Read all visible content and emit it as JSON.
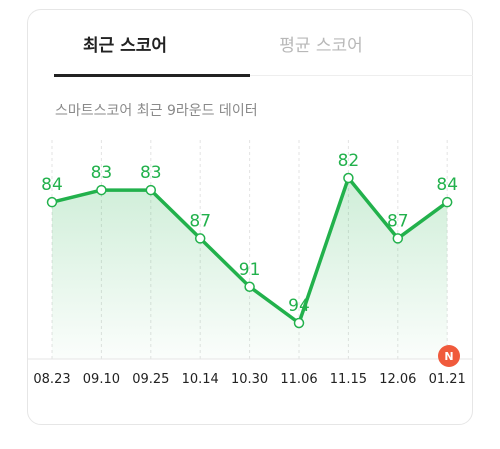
{
  "tabs": [
    {
      "label": "최근 스코어",
      "active": true
    },
    {
      "label": "평균 스코어",
      "active": false
    }
  ],
  "subtitle": "스마트스코어 최근 9라운드 데이터",
  "new_badge": "N",
  "colors": {
    "accent": "#22b14c",
    "area": "#e6f7e8",
    "badge": "#f05a3c"
  },
  "chart_data": {
    "type": "line",
    "categories": [
      "08.23",
      "09.10",
      "09.25",
      "10.14",
      "10.30",
      "11.06",
      "11.15",
      "12.06",
      "01.21"
    ],
    "values": [
      84,
      83,
      83,
      87,
      91,
      94,
      82,
      87,
      84
    ],
    "y_inverted": true,
    "grid": "vertical-dashed",
    "data_labels": true
  }
}
